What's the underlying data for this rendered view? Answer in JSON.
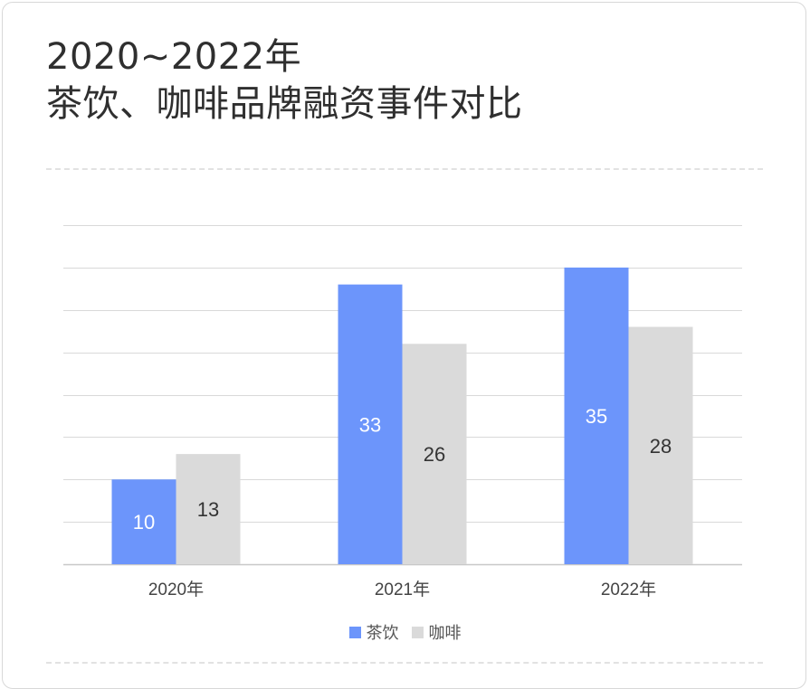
{
  "title_line1": "2020~2022年",
  "title_line2": "茶饮、咖啡品牌融资事件对比",
  "colors": {
    "tea": "#6c95fb",
    "coffee": "#dadada",
    "grid": "#d9d9d9",
    "label_on_tea": "#ffffff",
    "label_on_coffee": "#333333"
  },
  "chart_data": {
    "type": "bar",
    "title": "2020~2022年 茶饮、咖啡品牌融资事件对比",
    "categories": [
      "2020年",
      "2021年",
      "2022年"
    ],
    "series": [
      {
        "name": "茶饮",
        "values": [
          10,
          33,
          35
        ]
      },
      {
        "name": "咖啡",
        "values": [
          13,
          26,
          28
        ]
      }
    ],
    "ylim": [
      0,
      40
    ],
    "grid": true,
    "show_y_tick_labels": false,
    "legend_position": "bottom",
    "data_labels": true
  }
}
